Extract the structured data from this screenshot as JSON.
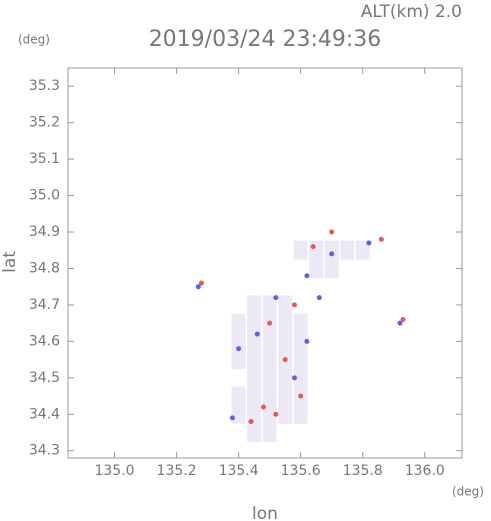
{
  "chart_data": {
    "type": "scatter",
    "title": "2019/03/24 23:49:36",
    "subtitle": "ALT(km) 2.0",
    "x_label": "lon",
    "y_label": "lat",
    "x_unit": "(deg)",
    "y_unit": "(deg)",
    "xlim": [
      134.85,
      136.12
    ],
    "ylim": [
      34.28,
      35.35
    ],
    "xticks": [
      {
        "value": 135,
        "label": "135.0"
      },
      135.2,
      135.4,
      135.6,
      135.8,
      {
        "value": 136,
        "label": "136.0"
      }
    ],
    "yticks": [
      34.3,
      34.4,
      34.5,
      34.6,
      34.7,
      34.8,
      34.9,
      {
        "value": 35,
        "label": "35.0"
      },
      35.1,
      35.2,
      35.3
    ],
    "series": [
      {
        "color": "#ece8f6",
        "marker": "cell",
        "x": [
          135.45,
          135.5,
          135.4,
          135.45,
          135.5,
          135.55,
          135.6,
          135.4,
          135.45,
          135.5,
          135.55,
          135.6,
          135.45,
          135.5,
          135.55,
          135.6,
          135.4,
          135.45,
          135.5,
          135.55,
          135.6,
          135.4,
          135.45,
          135.5,
          135.55,
          135.6,
          135.4,
          135.45,
          135.5,
          135.55,
          135.6,
          135.45,
          135.5,
          135.55,
          135.65,
          135.7,
          135.6,
          135.65,
          135.7,
          135.75,
          135.8
        ],
        "y": [
          34.35,
          34.35,
          34.4,
          34.4,
          34.4,
          34.4,
          34.4,
          34.45,
          34.45,
          34.45,
          34.45,
          34.45,
          34.5,
          34.5,
          34.5,
          34.5,
          34.55,
          34.55,
          34.55,
          34.55,
          34.55,
          34.6,
          34.6,
          34.6,
          34.6,
          34.6,
          34.65,
          34.65,
          34.65,
          34.65,
          34.65,
          34.7,
          34.7,
          34.7,
          34.8,
          34.8,
          34.85,
          34.85,
          34.85,
          34.85,
          34.85
        ]
      },
      {
        "color": "#e05a5a",
        "marker": "dot",
        "x": [
          135.28,
          135.52,
          135.48,
          135.44,
          135.58,
          135.64,
          135.86,
          135.55,
          135.6,
          135.5,
          135.7,
          135.93
        ],
        "y": [
          34.76,
          34.4,
          34.42,
          34.38,
          34.7,
          34.86,
          34.88,
          34.55,
          34.45,
          34.65,
          34.9,
          34.66
        ]
      },
      {
        "color": "#5a66e0",
        "marker": "dot",
        "x": [
          135.27,
          135.38,
          135.62,
          135.52,
          135.82,
          135.7,
          135.46,
          135.58,
          135.4,
          135.62,
          135.92,
          135.66
        ],
        "y": [
          34.75,
          34.39,
          34.6,
          34.72,
          34.87,
          34.84,
          34.62,
          34.5,
          34.58,
          34.78,
          34.65,
          34.72
        ]
      }
    ]
  }
}
